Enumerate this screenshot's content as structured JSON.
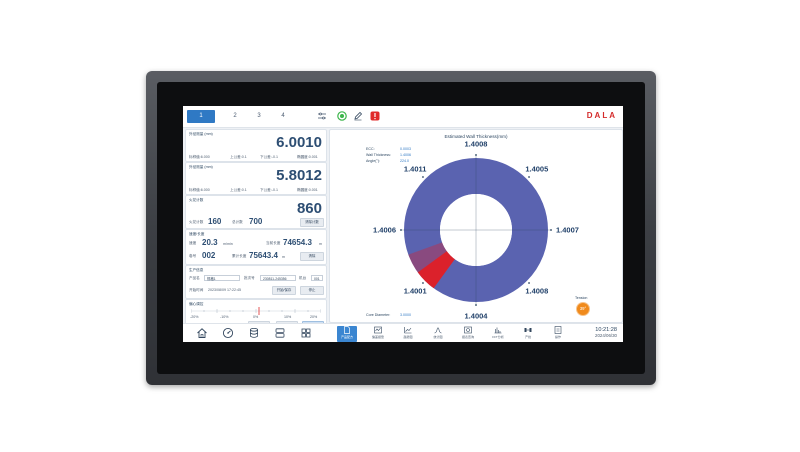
{
  "topbar": {
    "tabs": [
      "1",
      "2",
      "3",
      "4"
    ],
    "active_tab": 0,
    "brand": "DALA"
  },
  "cards": {
    "od1": {
      "title": "外径测量 (mm)",
      "value": "6.0010",
      "nominal": "标称值:6.000",
      "upper": "上公差:0.1",
      "lower": "下公差:-0.1",
      "ovality": "椭圆度:0.001"
    },
    "od2": {
      "title": "外径测量 (mm)",
      "value": "5.8012",
      "nominal": "标称值:6.000",
      "upper": "上公差:0.1",
      "lower": "下公差:-0.1",
      "ovality": "椭圆度:0.001"
    },
    "spark": {
      "title": "火花计数",
      "value": "860",
      "unit_label": "火花计数",
      "unit_value": "160",
      "total_label": "总计数",
      "total_value": "700",
      "reset_label": "清除计数"
    },
    "speed": {
      "title": "速度/长度",
      "speed_label": "速度",
      "speed_value": "20.3",
      "speed_unit": "m/min",
      "len_label": "当前长度",
      "len_value": "74654.3",
      "len_unit": "m",
      "s2_label": "卷号",
      "s2_value": "002",
      "total_label": "累计长度",
      "total_value": "75643.4",
      "total_unit": "m",
      "btn_label": "清除"
    },
    "prod": {
      "title": "生产信息",
      "product_label": "产品名",
      "product_value": "规格1",
      "batch_label": "批次号",
      "batch_value": "230811-245356",
      "machine_label": "机台",
      "machine_value": "001",
      "start_label": "开始时间",
      "start_value": "2023/08/09 17:22:45",
      "btn1": "开始/保存",
      "btn2": "停止"
    },
    "ctrl": {
      "title": "偏心调控",
      "scale": [
        "-20%",
        "-10%",
        "0%",
        "10%",
        "20%"
      ],
      "buttons": [
        "Auto",
        "Off",
        "On"
      ]
    }
  },
  "chart": {
    "title": "Estimated Wall Thickness(mm)",
    "ecc_label": "ECC:",
    "ecc_value": "0.0003",
    "wall_label": "Wall Thickness:",
    "wall_value": "1.4006",
    "angle_label": "Angle(°):",
    "angle_value": "224.0",
    "core_label": "Core Diameter:",
    "core_value": "3.0000",
    "tension_label": "Tension",
    "tension_value": "39°",
    "colors": {
      "ring": "#5a63b0",
      "highlight": "#e31e24"
    }
  },
  "chart_data": {
    "type": "pie",
    "categories": [
      "0°",
      "45°",
      "90°",
      "135°",
      "180°",
      "225°",
      "270°",
      "315°"
    ],
    "values": [
      1.4008,
      1.4005,
      1.4007,
      1.4008,
      1.4004,
      1.4001,
      1.4006,
      1.4011
    ],
    "title": "Estimated Wall Thickness(mm)"
  },
  "bottomnav": {
    "right_items": [
      "产品配方",
      "偏差报警",
      "趋势图",
      "统计图",
      "报表查询",
      "FFT分析",
      "产线",
      "操作"
    ],
    "active": 0,
    "time": "10:21:28",
    "date": "2024/06/30"
  }
}
